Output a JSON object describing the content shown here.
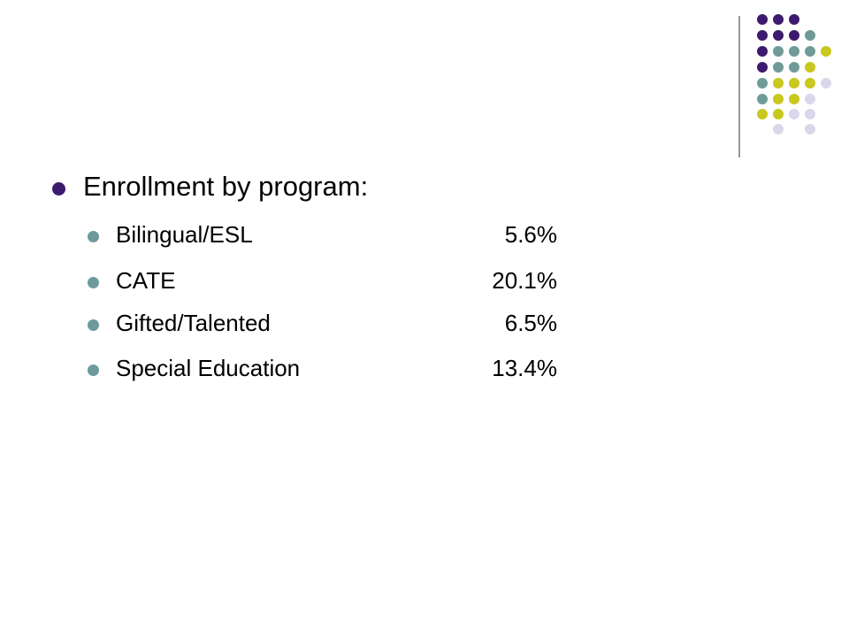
{
  "heading": "Enrollment by program:",
  "items": [
    {
      "label": "Bilingual/ESL",
      "value": "5.6%"
    },
    {
      "label": "CATE",
      "value": "20.1%"
    },
    {
      "label": "Gifted/Talented",
      "value": "6.5%"
    },
    {
      "label": "Special Education",
      "value": "13.4%"
    }
  ]
}
